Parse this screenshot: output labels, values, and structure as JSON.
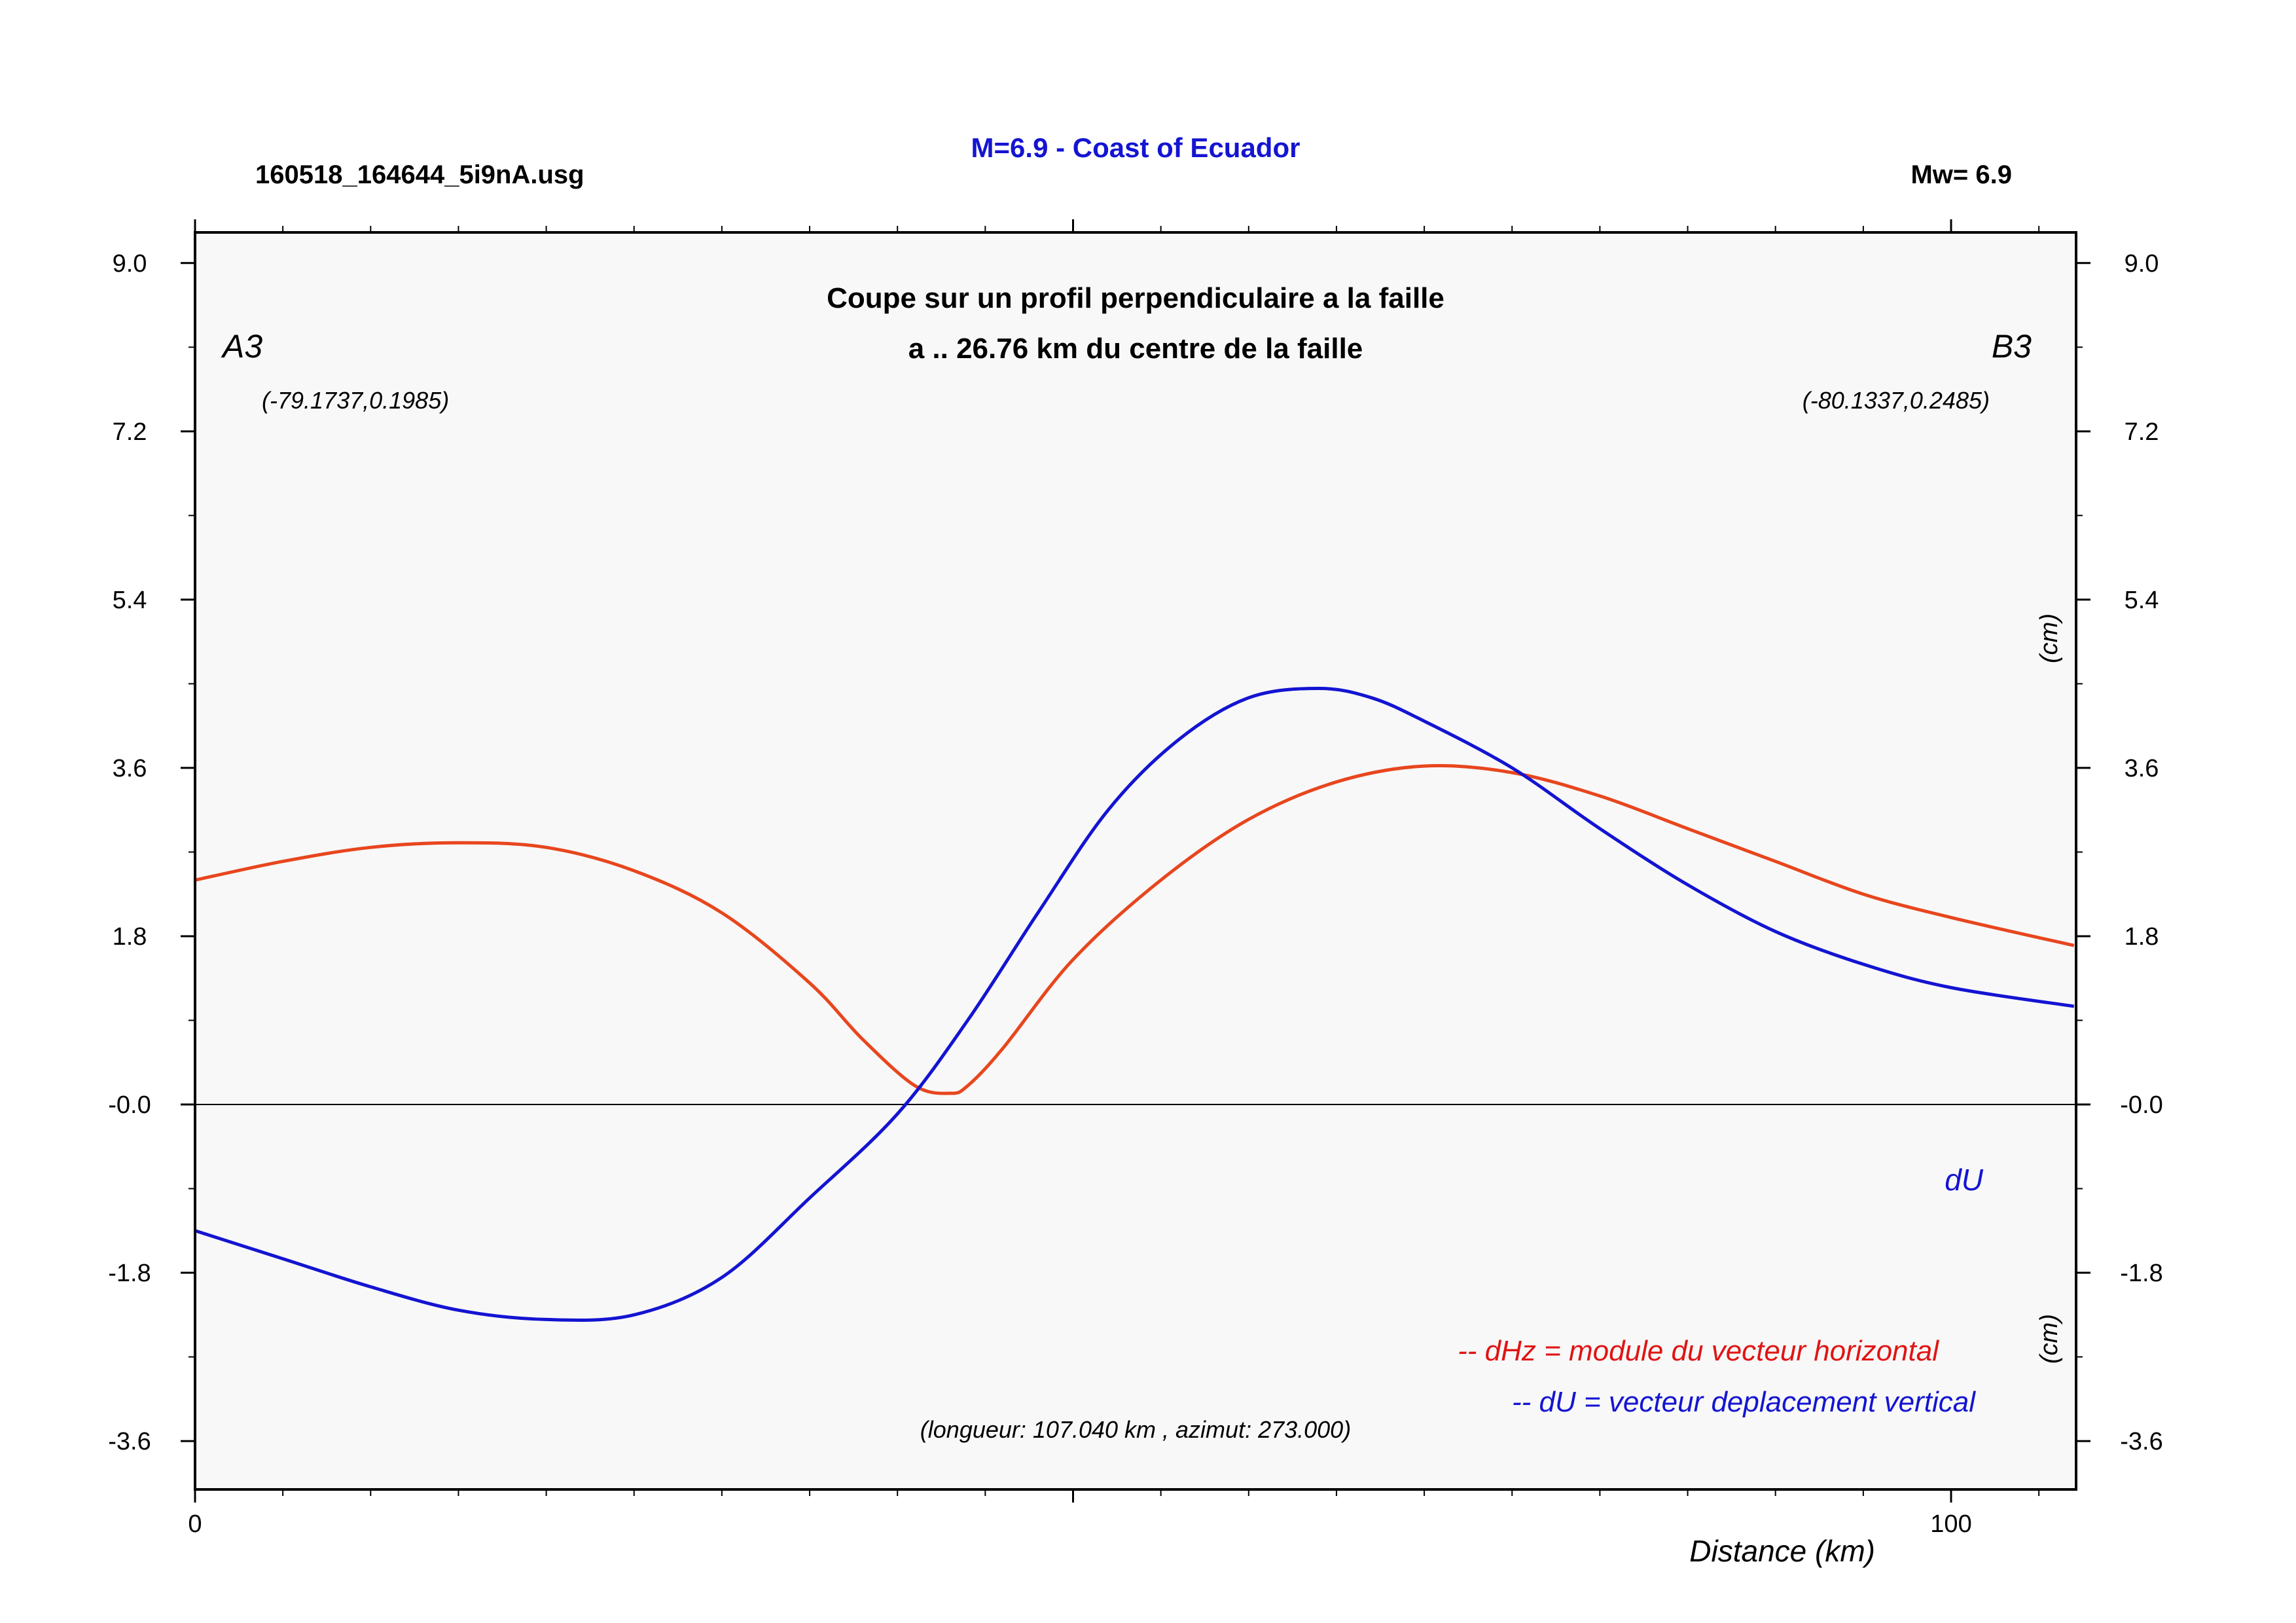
{
  "header": {
    "file_label": "160518_164644_5i9nA.usg",
    "title": "M=6.9 - Coast of Ecuador",
    "magnitude_label": "Mw= 6.9"
  },
  "colors": {
    "title": "#1414d2",
    "dHz": "#e8461e",
    "dU": "#1414d2",
    "plot_background": "#f8f8f8",
    "legend_red": "#e01414"
  },
  "plot": {
    "subtitle_line1": "Coupe sur un profil perpendiculaire a la faille",
    "subtitle_line2": "a .. 26.76 km du centre de la faille",
    "point_a_label": "A3",
    "point_b_label": "B3",
    "point_a_coords": "(-79.1737,0.1985)",
    "point_b_coords": "(-80.1337,0.2485)",
    "right_unit_upper": "(cm)",
    "right_unit_lower": "(cm)",
    "du_label": "dU",
    "legend_dhz": "-- dHz = module du vecteur horizontal",
    "legend_du": "-- dU =  vecteur deplacement vertical",
    "info": "(longueur: 107.040 km , azimut: 273.000)",
    "xlabel": "Distance (km)"
  },
  "chart_data": {
    "type": "line",
    "title": "M=6.9 - Coast of Ecuador",
    "xlabel": "Distance (km)",
    "ylabel": "(cm)",
    "xlim": [
      0,
      107.04
    ],
    "ylim": [
      -4.0,
      9.3
    ],
    "x_ticks": [
      "0",
      "100"
    ],
    "y_ticks_left": [
      "9.0",
      "7.2",
      "5.4",
      "3.6",
      "1.8",
      "-0.0",
      "-1.8",
      "-3.6"
    ],
    "y_ticks_right": [
      "9.0",
      "7.2",
      "5.4",
      "3.6",
      "1.8",
      "-0.0",
      "-1.8",
      "-3.6"
    ],
    "y_tick_values": [
      9.0,
      7.2,
      5.4,
      3.6,
      1.8,
      0.0,
      -1.8,
      -3.6
    ],
    "series": [
      {
        "name": "dHz",
        "x": [
          0,
          5,
          10,
          15,
          20,
          25,
          30,
          35,
          38,
          41,
          43,
          44,
          46,
          50,
          55,
          60,
          65,
          70,
          75,
          80,
          85,
          90,
          95,
          100,
          107
        ],
        "y": [
          2.4,
          2.6,
          2.75,
          2.8,
          2.75,
          2.5,
          2.05,
          1.3,
          0.7,
          0.2,
          0.12,
          0.2,
          0.6,
          1.55,
          2.4,
          3.05,
          3.45,
          3.62,
          3.55,
          3.3,
          2.95,
          2.6,
          2.25,
          2.0,
          1.7
        ]
      },
      {
        "name": "dU",
        "x": [
          0,
          5,
          10,
          15,
          20,
          25,
          30,
          35,
          40,
          44,
          48,
          52,
          56,
          60,
          64,
          67,
          70,
          75,
          80,
          85,
          90,
          95,
          100,
          107
        ],
        "y": [
          -1.35,
          -1.65,
          -1.95,
          -2.2,
          -2.3,
          -2.25,
          -1.85,
          -1.0,
          -0.1,
          0.9,
          2.05,
          3.15,
          3.9,
          4.35,
          4.45,
          4.35,
          4.1,
          3.6,
          2.95,
          2.35,
          1.85,
          1.5,
          1.25,
          1.05
        ]
      }
    ]
  }
}
